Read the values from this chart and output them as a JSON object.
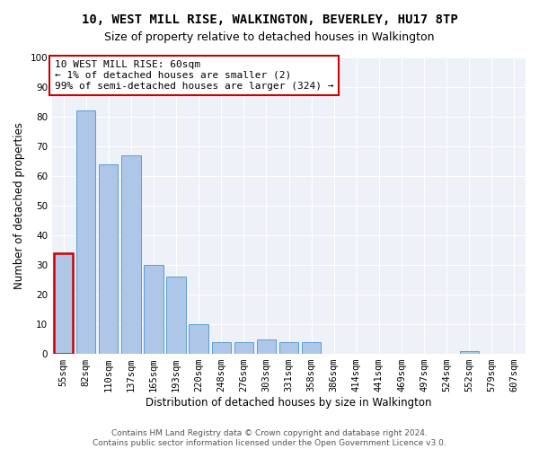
{
  "title": "10, WEST MILL RISE, WALKINGTON, BEVERLEY, HU17 8TP",
  "subtitle": "Size of property relative to detached houses in Walkington",
  "xlabel": "Distribution of detached houses by size in Walkington",
  "ylabel": "Number of detached properties",
  "categories": [
    "55sqm",
    "82sqm",
    "110sqm",
    "137sqm",
    "165sqm",
    "193sqm",
    "220sqm",
    "248sqm",
    "276sqm",
    "303sqm",
    "331sqm",
    "358sqm",
    "386sqm",
    "414sqm",
    "441sqm",
    "469sqm",
    "497sqm",
    "524sqm",
    "552sqm",
    "579sqm",
    "607sqm"
  ],
  "values": [
    34,
    82,
    64,
    67,
    30,
    26,
    10,
    4,
    4,
    5,
    4,
    4,
    0,
    0,
    0,
    0,
    0,
    0,
    1,
    0,
    0
  ],
  "bar_color": "#aec6e8",
  "bar_edge_color": "#5a9fd4",
  "highlight_bar_index": 0,
  "highlight_color": "#cc0000",
  "annotation_text": "10 WEST MILL RISE: 60sqm\n← 1% of detached houses are smaller (2)\n99% of semi-detached houses are larger (324) →",
  "annotation_box_color": "#ffffff",
  "annotation_box_edge_color": "#cc0000",
  "ylim": [
    0,
    100
  ],
  "yticks": [
    0,
    10,
    20,
    30,
    40,
    50,
    60,
    70,
    80,
    90,
    100
  ],
  "bg_color": "#eef2f8",
  "grid_color": "#ffffff",
  "footer_text": "Contains HM Land Registry data © Crown copyright and database right 2024.\nContains public sector information licensed under the Open Government Licence v3.0.",
  "title_fontsize": 10,
  "subtitle_fontsize": 9,
  "axis_label_fontsize": 8.5,
  "tick_fontsize": 7.5,
  "annotation_fontsize": 8,
  "footer_fontsize": 6.5
}
